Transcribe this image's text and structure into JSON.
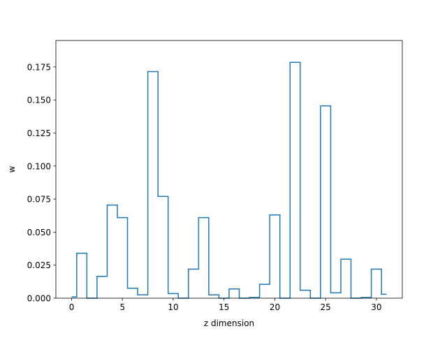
{
  "chart_data": {
    "type": "line",
    "drawstyle": "steps-mid",
    "xlabel": "z dimension",
    "ylabel": "w",
    "xlim": [
      -1.55,
      32.55
    ],
    "ylim": [
      0.0,
      0.195
    ],
    "xticks": [
      0,
      5,
      10,
      15,
      20,
      25,
      30
    ],
    "xtick_labels": [
      "0",
      "5",
      "10",
      "15",
      "20",
      "25",
      "30"
    ],
    "yticks": [
      0.0,
      0.025,
      0.05,
      0.075,
      0.1,
      0.125,
      0.15,
      0.175
    ],
    "ytick_labels": [
      "0.000",
      "0.025",
      "0.050",
      "0.075",
      "0.100",
      "0.125",
      "0.150",
      "0.175"
    ],
    "grid": false,
    "line_color": "#1f77b4",
    "series": [
      {
        "x": [
          0,
          1,
          2,
          3,
          4,
          5,
          6,
          7,
          8,
          9,
          10,
          11,
          12,
          13,
          14,
          15,
          16,
          17,
          18,
          19,
          20,
          21,
          22,
          23,
          24,
          25,
          26,
          27,
          28,
          29,
          30,
          31
        ],
        "values": [
          0.001,
          0.034,
          0.0,
          0.0165,
          0.0705,
          0.061,
          0.0075,
          0.0025,
          0.1715,
          0.077,
          0.0035,
          0.0,
          0.022,
          0.061,
          0.0025,
          0.0,
          0.007,
          0.0,
          0.0005,
          0.0105,
          0.063,
          0.0,
          0.1785,
          0.006,
          0.0,
          0.1455,
          0.004,
          0.0295,
          0.0,
          0.0005,
          0.022,
          0.003
        ]
      }
    ]
  }
}
